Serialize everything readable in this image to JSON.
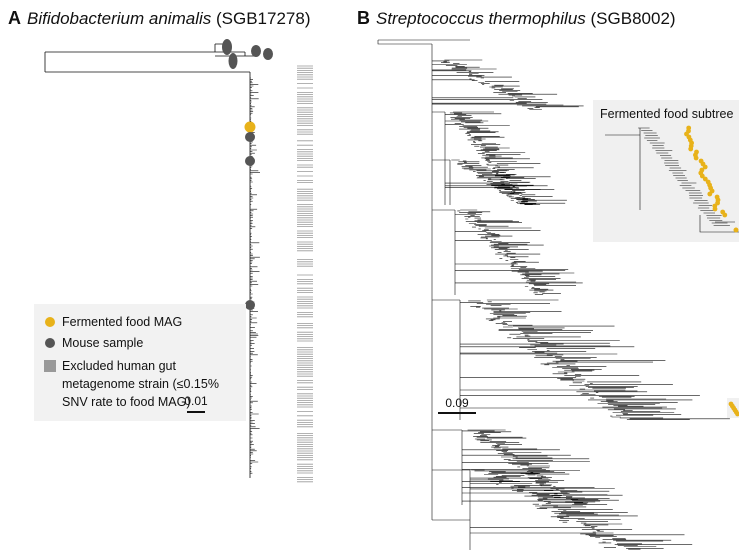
{
  "panels": [
    {
      "label": "A",
      "species": "Bifidobacterium animalis",
      "sgb": "(SGB17278)",
      "scale": "0.01"
    },
    {
      "label": "B",
      "species": "Streptococcus thermophilus",
      "sgb": "(SGB8002)",
      "scale": "0.09",
      "inset_title": "Fermented food subtree"
    }
  ],
  "legend": {
    "items": [
      {
        "label": "Fermented food MAG"
      },
      {
        "label": "Mouse sample"
      },
      {
        "label_lines": [
          "Excluded human gut",
          "metagenome strain (≤0.15%",
          "SNV rate to food MAG)"
        ]
      }
    ]
  }
}
